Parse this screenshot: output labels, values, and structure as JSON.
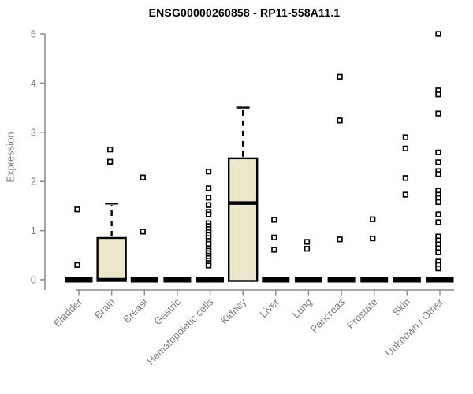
{
  "title": "ENSG00000260858 - RP11-558A11.1",
  "chart_data": {
    "type": "boxplot",
    "title": "ENSG00000260858 - RP11-558A11.1",
    "xlabel": "",
    "ylabel": "Expression",
    "ylim": [
      0,
      5
    ],
    "yticks": [
      0,
      1,
      2,
      3,
      4,
      5
    ],
    "grid": "off",
    "legend": "none",
    "marker_shape": "open-square",
    "categories": [
      "Bladder",
      "Brain",
      "Breast",
      "Gastric",
      "Hematopoietic cells",
      "Kidney",
      "Liver",
      "Lung",
      "Pancreas",
      "Prostate",
      "Skin",
      "Unknown / Other"
    ],
    "series": [
      {
        "category": "Bladder",
        "whisker_low": 0,
        "q1": 0,
        "median": 0,
        "q3": 0,
        "whisker_high": 0,
        "outliers": [
          1.43,
          0.3
        ]
      },
      {
        "category": "Brain",
        "whisker_low": 0,
        "q1": 0,
        "median": 0,
        "q3": 0.85,
        "whisker_high": 1.55,
        "outliers": [
          2.65,
          2.4
        ]
      },
      {
        "category": "Breast",
        "whisker_low": 0,
        "q1": 0,
        "median": 0,
        "q3": 0,
        "whisker_high": 0,
        "outliers": [
          2.08,
          0.98
        ]
      },
      {
        "category": "Gastric",
        "whisker_low": 0,
        "q1": 0,
        "median": 0,
        "q3": 0,
        "whisker_high": 0,
        "outliers": []
      },
      {
        "category": "Hematopoietic cells",
        "whisker_low": 0,
        "q1": 0,
        "median": 0,
        "q3": 0,
        "whisker_high": 0,
        "outliers": [
          2.2,
          1.86,
          1.67,
          1.52,
          1.38,
          1.33,
          1.15,
          1.09,
          1.03,
          0.97,
          0.91,
          0.85,
          0.79,
          0.73,
          0.64,
          0.59,
          0.54,
          0.49,
          0.44,
          0.39,
          0.34,
          0.29
        ]
      },
      {
        "category": "Kidney",
        "whisker_low": 0,
        "q1": 0,
        "median": 1.56,
        "q3": 2.47,
        "whisker_high": 3.5,
        "outliers": []
      },
      {
        "category": "Liver",
        "whisker_low": 0,
        "q1": 0,
        "median": 0,
        "q3": 0,
        "whisker_high": 0,
        "outliers": [
          1.22,
          0.86,
          0.61
        ]
      },
      {
        "category": "Lung",
        "whisker_low": 0,
        "q1": 0,
        "median": 0,
        "q3": 0,
        "whisker_high": 0,
        "outliers": [
          0.77,
          0.63
        ]
      },
      {
        "category": "Pancreas",
        "whisker_low": 0,
        "q1": 0,
        "median": 0,
        "q3": 0,
        "whisker_high": 0,
        "outliers": [
          4.13,
          3.24,
          0.82
        ]
      },
      {
        "category": "Prostate",
        "whisker_low": 0,
        "q1": 0,
        "median": 0,
        "q3": 0,
        "whisker_high": 0,
        "outliers": [
          1.23,
          0.84
        ]
      },
      {
        "category": "Skin",
        "whisker_low": 0,
        "q1": 0,
        "median": 0,
        "q3": 0,
        "whisker_high": 0,
        "outliers": [
          2.9,
          2.67,
          2.07,
          1.73
        ]
      },
      {
        "category": "Unknown / Other",
        "whisker_low": 0,
        "q1": 0,
        "median": 0,
        "q3": 0,
        "whisker_high": 0,
        "outliers": [
          5.0,
          3.85,
          3.77,
          3.38,
          2.59,
          2.39,
          2.21,
          2.15,
          1.81,
          1.73,
          1.66,
          1.58,
          1.33,
          1.17,
          0.88,
          0.8,
          0.72,
          0.64,
          0.56,
          0.37,
          0.3,
          0.23
        ]
      }
    ],
    "colors": {
      "box_fill": "#ECE6CB",
      "box_border": "#000000",
      "median": "#000000",
      "whisker": "#000000",
      "outlier_stroke": "#000000",
      "outlier_fill": "#ffffff",
      "axis_line": "#8a8a8a",
      "tick_label": "#7d7d7d",
      "title": "#000000"
    }
  }
}
